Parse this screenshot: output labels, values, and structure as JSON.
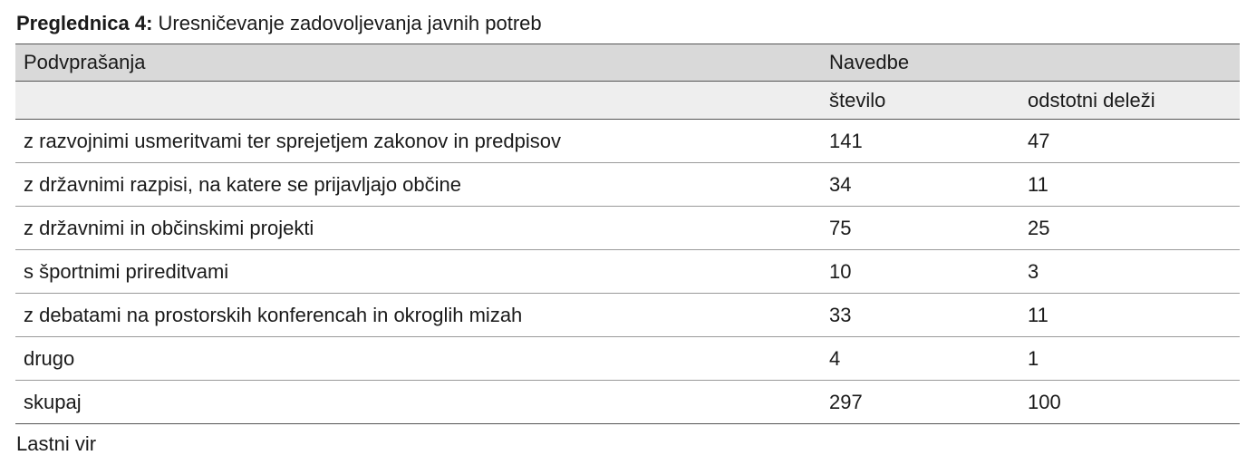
{
  "caption": {
    "label": "Preglednica 4:",
    "text": " Uresničevanje zadovoljevanja javnih potreb"
  },
  "table": {
    "header": {
      "col1": "Podvprašanja",
      "col2": "Navedbe"
    },
    "subheader": {
      "col1": "",
      "col2": "število",
      "col3": "odstotni deleži"
    },
    "rows": [
      {
        "label": "z razvojnimi usmeritvami ter sprejetjem zakonov in predpisov",
        "count": "141",
        "percent": "47"
      },
      {
        "label": "z državnimi razpisi, na katere se prijavljajo občine",
        "count": "34",
        "percent": "11"
      },
      {
        "label": "z državnimi in občinskimi projekti",
        "count": "75",
        "percent": "25"
      },
      {
        "label": "s športnimi prireditvami",
        "count": "10",
        "percent": "3"
      },
      {
        "label": "z debatami na prostorskih konferencah in okroglih mizah",
        "count": "33",
        "percent": "11"
      },
      {
        "label": "drugo",
        "count": "4",
        "percent": "1"
      },
      {
        "label": "skupaj",
        "count": "297",
        "percent": "100"
      }
    ]
  },
  "source": "Lastni vir"
}
